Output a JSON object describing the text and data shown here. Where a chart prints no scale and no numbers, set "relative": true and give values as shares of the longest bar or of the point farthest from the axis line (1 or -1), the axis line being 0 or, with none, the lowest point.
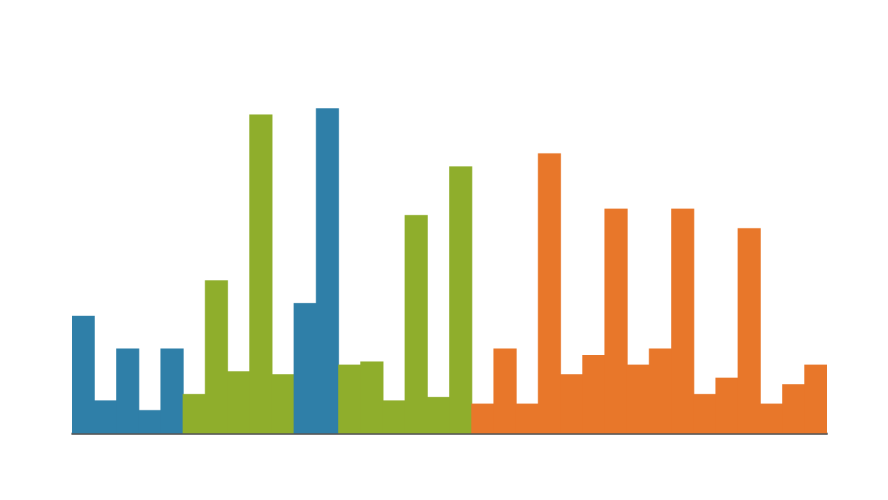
{
  "chart_data": {
    "type": "bar",
    "relative": true,
    "tick_labels": false,
    "grid": false,
    "legend": false,
    "categories": [
      null,
      null,
      null,
      null,
      null,
      null,
      null,
      null,
      null,
      null,
      null,
      null,
      null,
      null,
      null,
      null,
      null,
      null,
      null,
      null,
      null,
      null,
      null,
      null,
      null,
      null,
      null,
      null,
      null,
      null,
      null,
      null,
      null,
      null
    ],
    "values": [
      0.36,
      0.1,
      0.26,
      0.07,
      0.26,
      0.12,
      0.47,
      0.19,
      0.98,
      0.18,
      0.4,
      1,
      0.21,
      0.22,
      0.1,
      0.67,
      0.11,
      0.82,
      0.09,
      0.26,
      0.09,
      0.86,
      0.18,
      0.24,
      0.69,
      0.21,
      0.26,
      0.69,
      0.12,
      0.17,
      0.63,
      0.09,
      0.15,
      0.21
    ],
    "colors": [
      "#2f7fa8",
      "#2f7fa8",
      "#2f7fa8",
      "#2f7fa8",
      "#2f7fa8",
      "#8fae2c",
      "#8fae2c",
      "#8fae2c",
      "#8fae2c",
      "#8fae2c",
      "#2f7fa8",
      "#2f7fa8",
      "#8fae2c",
      "#8fae2c",
      "#8fae2c",
      "#8fae2c",
      "#8fae2c",
      "#8fae2c",
      "#e8772a",
      "#e8772a",
      "#e8772a",
      "#e8772a",
      "#e8772a",
      "#e8772a",
      "#e8772a",
      "#e8772a",
      "#e8772a",
      "#e8772a",
      "#e8772a",
      "#e8772a",
      "#e8772a",
      "#e8772a",
      "#e8772a",
      "#e8772a"
    ]
  }
}
